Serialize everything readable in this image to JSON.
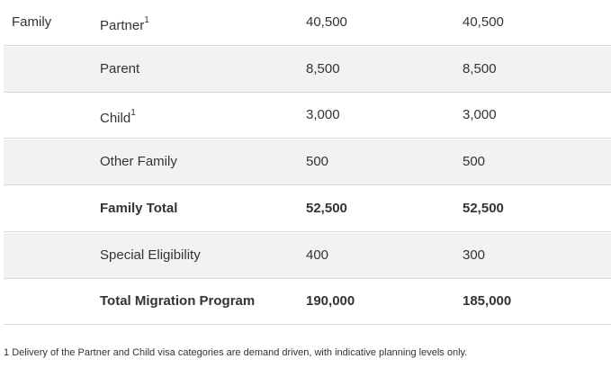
{
  "table": {
    "rows": [
      {
        "group": "Family",
        "item": "Partner",
        "note": "1",
        "a": "40,500",
        "b": "40,500",
        "bold": false
      },
      {
        "item": "Parent",
        "a": "8,500",
        "b": "8,500",
        "bold": false
      },
      {
        "item": "Child",
        "note": "1",
        "a": "3,000",
        "b": "3,000",
        "bold": false
      },
      {
        "item": "Other Family",
        "a": "500",
        "b": "500",
        "bold": false
      },
      {
        "item": "Family Total",
        "a": "52,500",
        "b": "52,500",
        "bold": true
      },
      {
        "item": "Special Eligibility",
        "a": "400",
        "b": "300",
        "bold": false
      },
      {
        "item": "Total Migration Program",
        "a": "190,000",
        "b": "185,000",
        "bold": true
      }
    ]
  },
  "footnote": {
    "marker": "1",
    "text": "Delivery of the Partner and Child visa categories are demand driven, with indicative planning levels only."
  }
}
